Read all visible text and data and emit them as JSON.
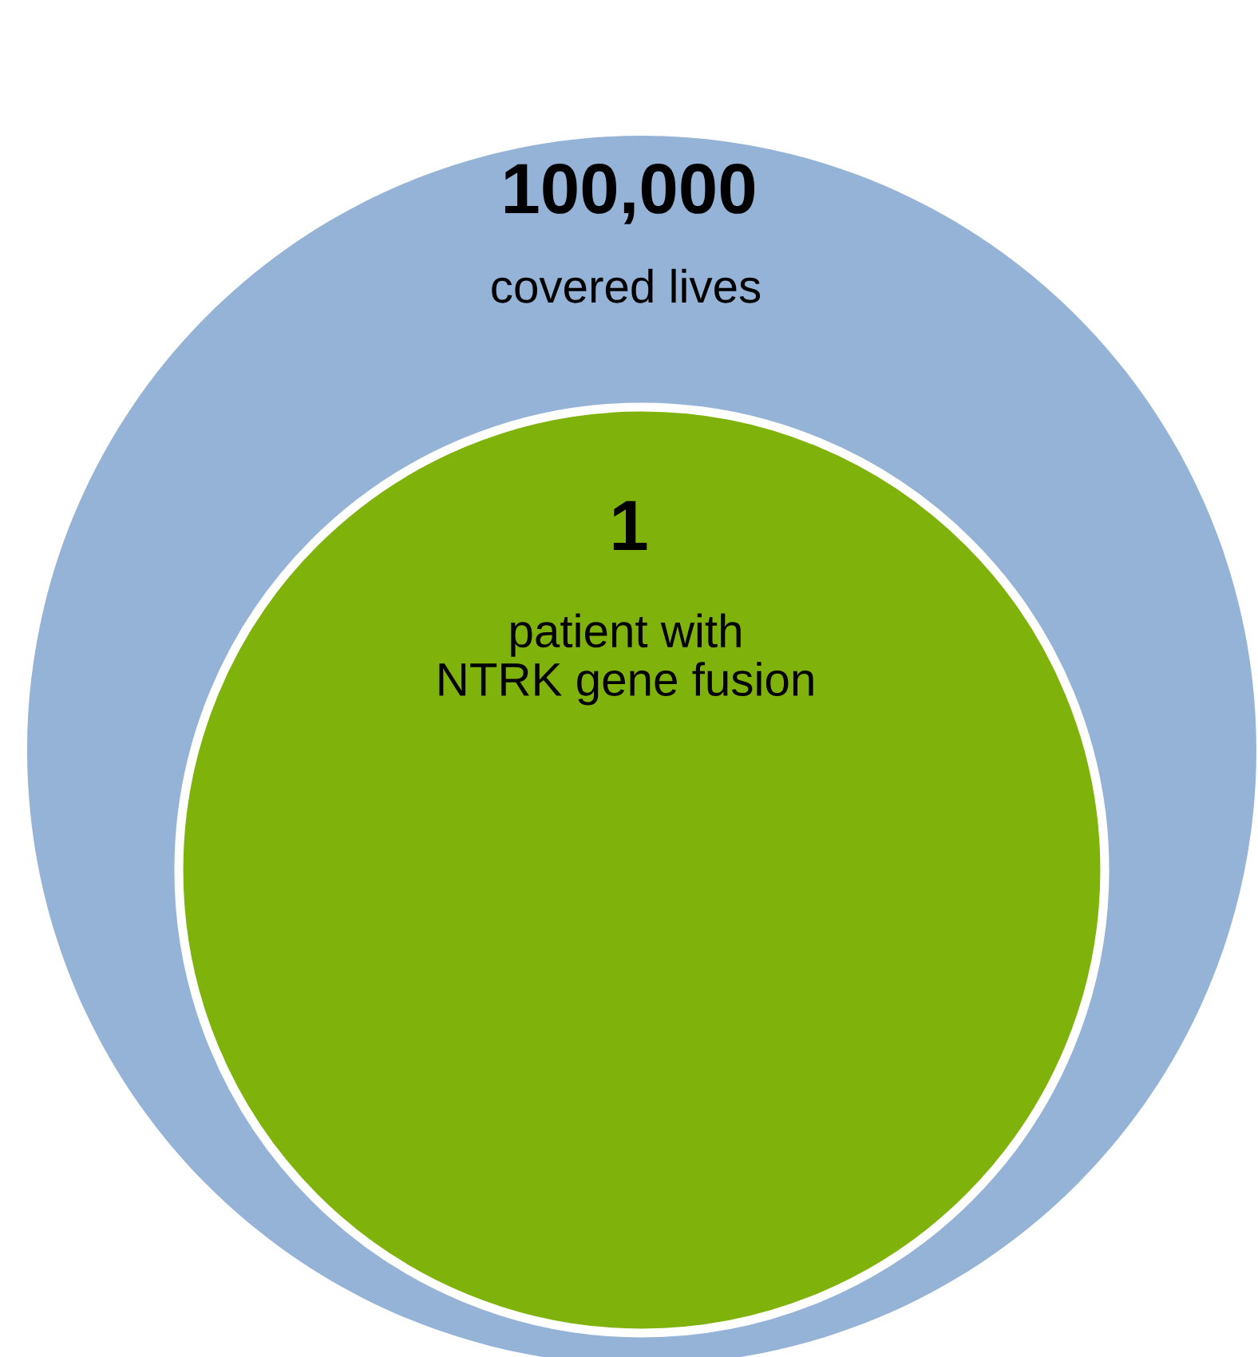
{
  "chart_data": {
    "type": "other",
    "categories": [
      "covered lives",
      "patient with\nNTRK gene fusion"
    ],
    "values": [
      100000,
      1
    ],
    "value_labels": [
      "100,000",
      "1"
    ],
    "colors": [
      "#95b3d7",
      "#7fb20a"
    ]
  }
}
